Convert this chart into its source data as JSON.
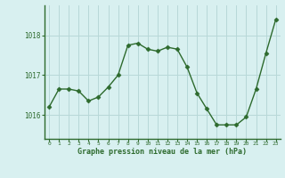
{
  "x": [
    0,
    1,
    2,
    3,
    4,
    5,
    6,
    7,
    8,
    9,
    10,
    11,
    12,
    13,
    14,
    15,
    16,
    17,
    18,
    19,
    20,
    21,
    22,
    23
  ],
  "y": [
    1016.2,
    1016.65,
    1016.65,
    1016.6,
    1016.35,
    1016.45,
    1016.7,
    1017.0,
    1017.75,
    1017.8,
    1017.65,
    1017.6,
    1017.7,
    1017.65,
    1017.2,
    1016.55,
    1016.15,
    1015.75,
    1015.75,
    1015.75,
    1015.95,
    1016.65,
    1017.55,
    1018.4
  ],
  "line_color": "#2d6a2d",
  "marker": "D",
  "marker_size": 2.5,
  "marker_color": "#2d6a2d",
  "bg_color": "#d8f0f0",
  "grid_color": "#b8d8d8",
  "axis_color": "#2d6a2d",
  "tick_label_color": "#2d6a2d",
  "xlabel": "Graphe pression niveau de la mer (hPa)",
  "xlabel_color": "#2d6a2d",
  "yticks": [
    1016,
    1017,
    1018
  ],
  "xticks": [
    0,
    1,
    2,
    3,
    4,
    5,
    6,
    7,
    8,
    9,
    10,
    11,
    12,
    13,
    14,
    15,
    16,
    17,
    18,
    19,
    20,
    21,
    22,
    23
  ],
  "ylim": [
    1015.4,
    1018.75
  ],
  "xlim": [
    -0.5,
    23.5
  ]
}
